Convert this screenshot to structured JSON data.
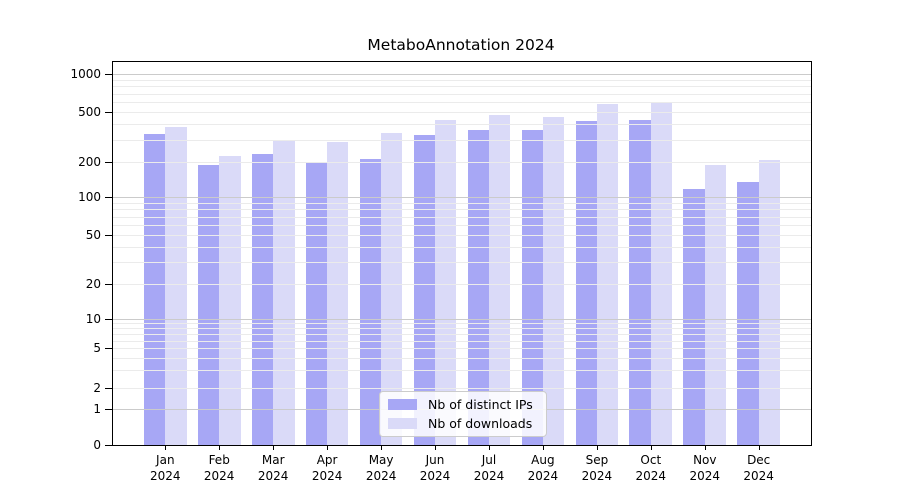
{
  "figure": {
    "background": "#ffffff"
  },
  "chart_data": {
    "type": "bar",
    "title": "MetaboAnnotation 2024",
    "categories": [
      "Jan 2024",
      "Feb 2024",
      "Mar 2024",
      "Apr 2024",
      "May 2024",
      "Jun 2024",
      "Jul 2024",
      "Aug 2024",
      "Sep 2024",
      "Oct 2024",
      "Nov 2024",
      "Dec 2024"
    ],
    "series": [
      {
        "name": "Nb of distinct IPs",
        "color": "#a7a7f5",
        "values": [
          335,
          186,
          228,
          198,
          208,
          328,
          360,
          357,
          420,
          430,
          118,
          134
        ]
      },
      {
        "name": "Nb of downloads",
        "color": "#dadaf8",
        "values": [
          377,
          220,
          290,
          286,
          340,
          429,
          470,
          453,
          580,
          600,
          188,
          204
        ]
      }
    ],
    "xlabel": "",
    "ylabel": "",
    "yscale": "symlog",
    "yticks": [
      0,
      1,
      2,
      5,
      10,
      20,
      50,
      100,
      200,
      500,
      1000
    ],
    "ylim": [
      0,
      1260
    ],
    "grid": true,
    "legend_position": "lower center",
    "colors": {
      "grid_major": "#cbcbcb",
      "grid_minor": "#ebebeb",
      "axis": "#000000",
      "tick_label": "#000000"
    }
  }
}
